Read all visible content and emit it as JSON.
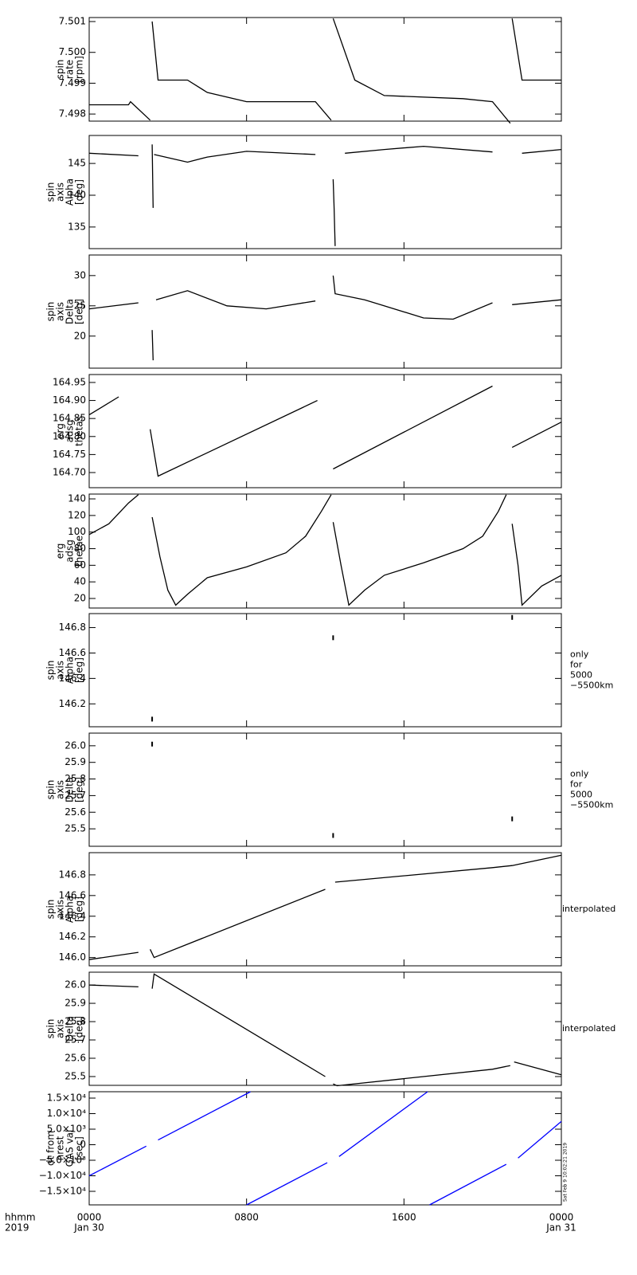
{
  "x_axis": {
    "xlim": [
      0,
      24
    ],
    "xticks": [
      {
        "value": 0,
        "label": "0000"
      },
      {
        "value": 8,
        "label": "0800"
      },
      {
        "value": 16,
        "label": "1600"
      },
      {
        "value": 24,
        "label": "0000"
      }
    ],
    "date_labels": [
      {
        "value": 0,
        "label": "Jan 30"
      },
      {
        "value": 24,
        "label": "Jan 31"
      }
    ],
    "label": [
      "hhmm",
      "2019"
    ]
  },
  "timestamp": "Sat Feb 9 10:02:21 2019",
  "chart_data": [
    {
      "type": "line",
      "ylabel": [
        "spin",
        "rate",
        "[rpm]"
      ],
      "ylim": [
        7.49777,
        7.50113
      ],
      "yticks": [
        7.498,
        7.499,
        {
          "value": 7.5,
          "label": "7.500"
        },
        7.501
      ],
      "series": [
        {
          "color": "#000000",
          "x": [
            0,
            2,
            2.1,
            3.1,
            null,
            3.2,
            3.5,
            5,
            6,
            8,
            11.5,
            12.3,
            null,
            12.4,
            13.5,
            15,
            19,
            20.5,
            21.4,
            null,
            21.5,
            22,
            24
          ],
          "values": [
            7.4983,
            7.4983,
            7.4984,
            7.4978,
            null,
            7.501,
            7.4991,
            7.4991,
            7.4987,
            7.4984,
            7.4984,
            7.4978,
            null,
            7.5011,
            7.4991,
            7.4986,
            7.4985,
            7.4984,
            7.4977,
            null,
            7.5011,
            7.4991,
            7.4991
          ]
        }
      ]
    },
    {
      "type": "line",
      "ylabel": [
        "spin",
        "axis",
        "Alpha",
        "[deg]"
      ],
      "ylim": [
        131.6,
        149.4
      ],
      "yticks": [
        135,
        140,
        145
      ],
      "series": [
        {
          "color": "#000000",
          "x": [
            0,
            2.5,
            null,
            3.2,
            3.25,
            null,
            3.3,
            5,
            6,
            8,
            11.5,
            null,
            12.4,
            12.45,
            12.5,
            null,
            13,
            15,
            17,
            20.5,
            null,
            22,
            24
          ],
          "values": [
            146.6,
            146.2,
            null,
            148,
            138,
            null,
            146.4,
            145.2,
            146,
            146.9,
            146.4,
            null,
            142.5,
            138,
            132,
            null,
            146.6,
            147.2,
            147.7,
            146.8,
            null,
            146.6,
            147.2
          ]
        }
      ]
    },
    {
      "type": "line",
      "ylabel": [
        "spin",
        "axis",
        "Delta",
        "[deg]"
      ],
      "ylim": [
        14.7,
        33.4
      ],
      "yticks": [
        20,
        25,
        30
      ],
      "series": [
        {
          "color": "#000000",
          "x": [
            0,
            2.5,
            null,
            3.2,
            3.25,
            null,
            3.4,
            5,
            7,
            9,
            11.5,
            null,
            12.4,
            12.5,
            14,
            17,
            18.5,
            20.5,
            null,
            21.5,
            24
          ],
          "values": [
            24.5,
            25.5,
            null,
            21,
            16,
            null,
            26,
            27.5,
            25,
            24.5,
            25.8,
            null,
            30,
            27,
            26,
            23,
            22.8,
            25.5,
            null,
            25.2,
            26
          ]
        }
      ]
    },
    {
      "type": "line",
      "ylabel": [
        "erg",
        "adsg",
        "thetas"
      ],
      "ylim": [
        164.658,
        164.972
      ],
      "yticks": [
        {
          "value": 164.7,
          "label": "164.70"
        },
        164.75,
        {
          "value": 164.8,
          "label": "164.80"
        },
        164.85,
        {
          "value": 164.9,
          "label": "164.90"
        },
        164.95
      ],
      "series": [
        {
          "color": "#000000",
          "x": [
            0,
            1.5,
            null,
            3.1,
            3.5,
            11.6,
            null,
            12.4,
            20.5,
            null,
            21.5,
            24
          ],
          "values": [
            164.86,
            164.91,
            null,
            164.82,
            164.69,
            164.9,
            null,
            164.71,
            164.94,
            null,
            164.77,
            164.84
          ]
        }
      ]
    },
    {
      "type": "line",
      "ylabel": [
        "erg",
        "adsg",
        "thetae"
      ],
      "ylim": [
        8.5,
        145.8
      ],
      "yticks": [
        20,
        40,
        60,
        80,
        100,
        120,
        140
      ],
      "series": [
        {
          "color": "#000000",
          "x": [
            0,
            1,
            2,
            2.5,
            null,
            3.2,
            3.6,
            4,
            4.4,
            5,
            6,
            8,
            10,
            11,
            11.8,
            12.3,
            null,
            12.4,
            12.8,
            13.2,
            14,
            15,
            17,
            19,
            20,
            20.8,
            21.2,
            null,
            21.5,
            21.8,
            22,
            23,
            24
          ],
          "values": [
            97,
            110,
            135,
            145,
            null,
            118,
            70,
            30,
            12,
            25,
            45,
            58,
            75,
            95,
            125,
            145,
            null,
            112,
            60,
            12,
            30,
            48,
            63,
            80,
            95,
            125,
            145,
            null,
            110,
            60,
            12,
            35,
            48
          ]
        }
      ]
    },
    {
      "type": "scatter",
      "ylabel": [
        "spin",
        "axis",
        "Alpha",
        "[deg]"
      ],
      "note": [
        "only",
        "for",
        "5000",
        "−5500km"
      ],
      "ylim": [
        146.02,
        146.91
      ],
      "yticks": [
        146.2,
        146.4,
        146.6,
        146.8
      ],
      "series": [
        {
          "color": "#000000",
          "x": [
            3.2,
            12.4,
            21.5
          ],
          "values": [
            146.08,
            146.72,
            146.88
          ]
        }
      ]
    },
    {
      "type": "scatter",
      "ylabel": [
        "spin",
        "axis",
        "Delta",
        "[deg]"
      ],
      "note": [
        "only",
        "for",
        "5000",
        "−5500km"
      ],
      "ylim": [
        25.395,
        26.076
      ],
      "yticks": [
        25.5,
        25.6,
        25.7,
        25.8,
        25.9,
        {
          "value": 26,
          "label": "26.0"
        }
      ],
      "series": [
        {
          "color": "#000000",
          "x": [
            3.2,
            12.4,
            21.5
          ],
          "values": [
            26.01,
            25.46,
            25.56
          ]
        }
      ]
    },
    {
      "type": "line",
      "ylabel": [
        "spin",
        "axis",
        "Alpha",
        "[deg]"
      ],
      "note": [
        "interpolated"
      ],
      "ylim": [
        145.92,
        147.015
      ],
      "yticks": [
        {
          "value": 146,
          "label": "146.0"
        },
        146.2,
        146.4,
        146.6,
        146.8
      ],
      "series": [
        {
          "color": "#000000",
          "x": [
            0,
            2.5,
            null,
            3.1,
            3.3,
            12,
            null,
            12.5,
            20.5,
            21.5,
            24
          ],
          "values": [
            145.98,
            146.05,
            null,
            146.08,
            146,
            146.66,
            null,
            146.73,
            146.87,
            146.89,
            146.99
          ]
        }
      ]
    },
    {
      "type": "line",
      "ylabel": [
        "spin",
        "axis",
        "Delta",
        "[deg]"
      ],
      "note": [
        "interpolated"
      ],
      "ylim": [
        25.452,
        26.07
      ],
      "yticks": [
        25.5,
        25.6,
        25.7,
        25.8,
        25.9,
        {
          "value": 26,
          "label": "26.0"
        }
      ],
      "series": [
        {
          "color": "#000000",
          "x": [
            0,
            2.5,
            null,
            3.2,
            3.3,
            12,
            null,
            12.4,
            12.6,
            20.5,
            21.4,
            null,
            21.6,
            24
          ],
          "values": [
            26,
            25.99,
            null,
            25.98,
            26.06,
            25.5,
            null,
            25.46,
            25.45,
            25.54,
            25.56,
            null,
            25.58,
            25.51
          ]
        }
      ]
    },
    {
      "type": "line",
      "ylabel": [
        "dt from",
        "nrest",
        "GAS val",
        "[sec]"
      ],
      "ylim": [
        -19360,
        17050
      ],
      "yticks": [
        {
          "value": -15000,
          "label": "−1.5×10⁴"
        },
        {
          "value": -10000,
          "label": "−1.0×10⁴"
        },
        {
          "value": -5000,
          "label": "−5.0×10³"
        },
        0,
        {
          "value": 5000,
          "label": "5.0×10³"
        },
        {
          "value": 10000,
          "label": "1.0×10⁴"
        },
        {
          "value": 15000,
          "label": "1.5×10⁴"
        }
      ],
      "series": [
        {
          "color": "#0000ff",
          "x": [
            0,
            2.9,
            null,
            3.5,
            8.2,
            null,
            8,
            12.1,
            null,
            12.7,
            17.2,
            null,
            17.3,
            21.2,
            null,
            21.8,
            24
          ],
          "values": [
            -10000,
            -450,
            null,
            1500,
            17050,
            null,
            -19360,
            -5800,
            null,
            -3800,
            17050,
            null,
            -19360,
            -6300,
            null,
            -4300,
            7500
          ]
        }
      ]
    }
  ]
}
